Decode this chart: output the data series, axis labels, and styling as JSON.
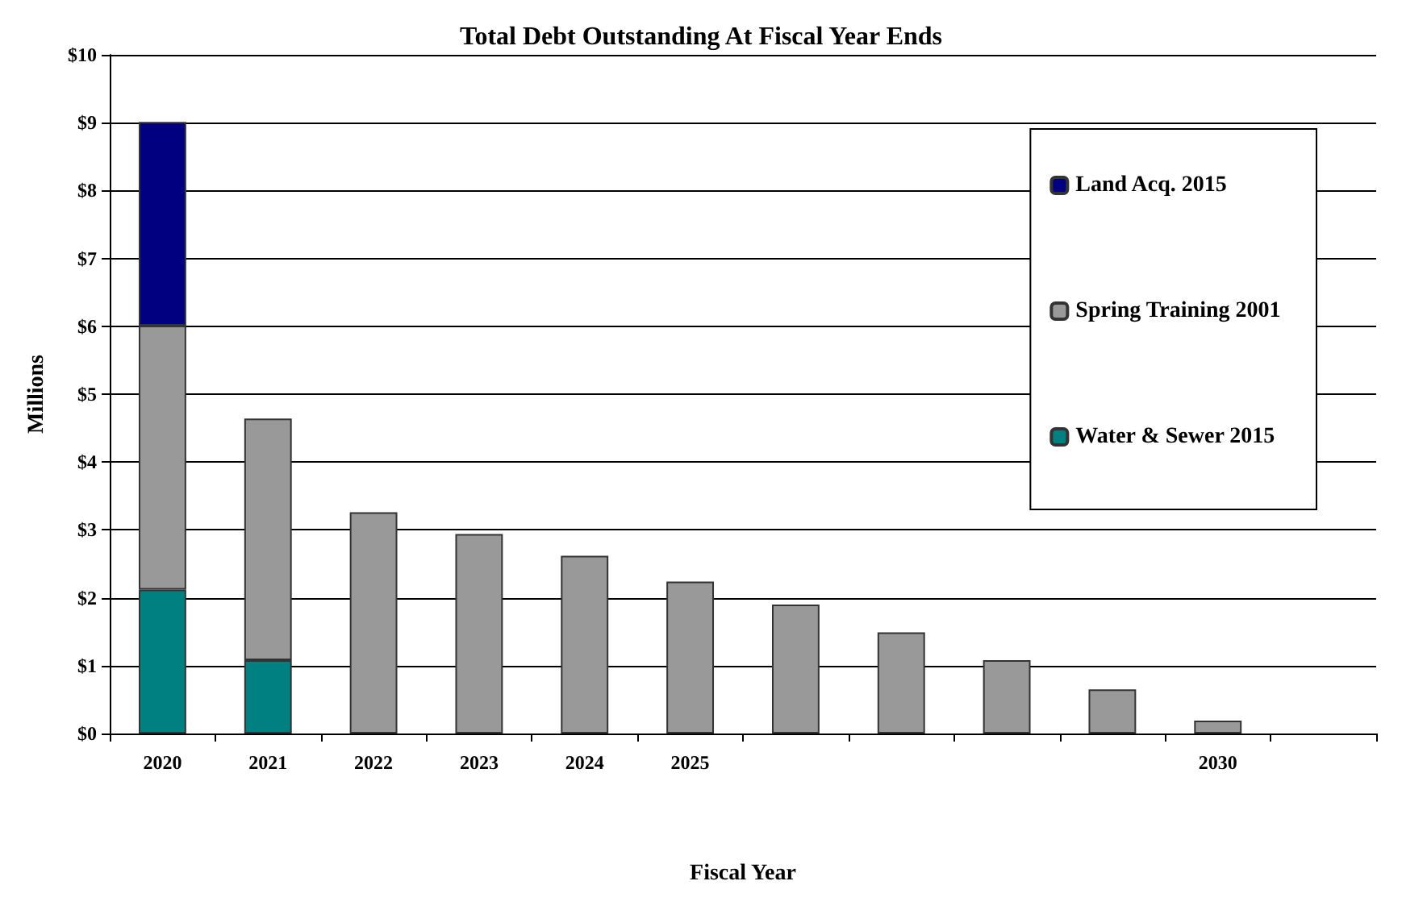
{
  "chart_data": {
    "type": "bar",
    "title": "Total Debt Outstanding At Fiscal Year Ends",
    "xlabel": "Fiscal Year",
    "ylabel": "Millions",
    "categories": [
      "2020",
      "2021",
      "2022",
      "2023",
      "2024",
      "2025",
      null,
      null,
      null,
      null,
      "2030",
      null
    ],
    "stacked": true,
    "series": [
      {
        "name": "Water & Sewer 2015",
        "color": "#008080",
        "values": [
          2.12,
          1.08,
          null,
          null,
          null,
          null,
          null,
          null,
          null,
          null,
          null,
          null
        ]
      },
      {
        "name": "Spring Training 2001",
        "color": "#999999",
        "values": [
          3.89,
          3.56,
          3.26,
          2.94,
          2.62,
          2.24,
          1.9,
          1.49,
          1.08,
          0.65,
          0.19,
          null
        ]
      },
      {
        "name": "Land Acq. 2015",
        "color": "#000080",
        "values": [
          3.0,
          null,
          null,
          null,
          null,
          null,
          null,
          null,
          null,
          null,
          null,
          null
        ]
      }
    ],
    "ylim": [
      0,
      10
    ],
    "yticks": [
      {
        "value": 0,
        "label": "$0"
      },
      {
        "value": 1,
        "label": "$1"
      },
      {
        "value": 2,
        "label": "$2"
      },
      {
        "value": 3,
        "label": "$3"
      },
      {
        "value": 4,
        "label": "$4"
      },
      {
        "value": 5,
        "label": "$5"
      },
      {
        "value": 6,
        "label": "$6"
      },
      {
        "value": 7,
        "label": "$7"
      },
      {
        "value": 8,
        "label": "$8"
      },
      {
        "value": 9,
        "label": "$9"
      },
      {
        "value": 10,
        "label": "$10"
      }
    ],
    "grid": "y",
    "legend": "top right"
  }
}
